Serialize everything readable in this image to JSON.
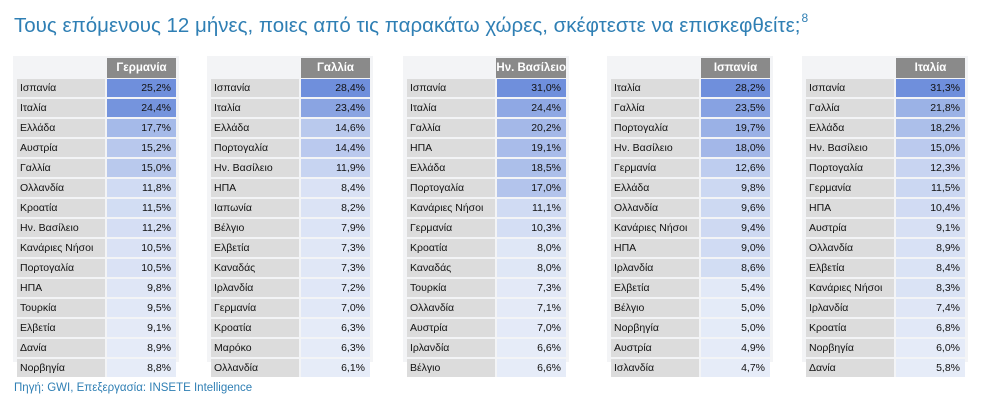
{
  "title": "Τους επόμενους 12 μήνες, ποιες από τις παρακάτω χώρες, σκέφτεστε να επισκεφθείτε;",
  "footnote_mark": "8",
  "source": "Πηγή: GWI, Επεξεργασία: INSETE Intelligence",
  "colors": {
    "title": "#2f7fb4",
    "header_bg": "#8a8a8a",
    "label_bg": "#dcdcdc",
    "bar_max": "#6f8fdc",
    "bar_min": "#e6ecf8"
  },
  "tables": [
    {
      "header": "Γερμανία",
      "rows": [
        {
          "country": "Ισπανία",
          "value": "25,2%"
        },
        {
          "country": "Ιταλία",
          "value": "24,4%"
        },
        {
          "country": "Ελλάδα",
          "value": "17,7%"
        },
        {
          "country": "Αυστρία",
          "value": "15,2%"
        },
        {
          "country": "Γαλλία",
          "value": "15,0%"
        },
        {
          "country": "Ολλανδία",
          "value": "11,8%"
        },
        {
          "country": "Κροατία",
          "value": "11,5%"
        },
        {
          "country": "Ην. Βασίλειο",
          "value": "11,2%"
        },
        {
          "country": "Κανάριες Νήσοι",
          "value": "10,5%"
        },
        {
          "country": "Πορτογαλία",
          "value": "10,5%"
        },
        {
          "country": "ΗΠΑ",
          "value": "9,8%"
        },
        {
          "country": "Τουρκία",
          "value": "9,5%"
        },
        {
          "country": "Ελβετία",
          "value": "9,1%"
        },
        {
          "country": "Δανία",
          "value": "8,9%"
        },
        {
          "country": "Νορβηγία",
          "value": "8,8%"
        }
      ]
    },
    {
      "header": "Γαλλία",
      "rows": [
        {
          "country": "Ισπανία",
          "value": "28,4%"
        },
        {
          "country": "Ιταλία",
          "value": "23,4%"
        },
        {
          "country": "Ελλάδα",
          "value": "14,6%"
        },
        {
          "country": "Πορτογαλία",
          "value": "14,4%"
        },
        {
          "country": "Ην. Βασίλειο",
          "value": "11,9%"
        },
        {
          "country": "ΗΠΑ",
          "value": "8,4%"
        },
        {
          "country": "Ιαπωνία",
          "value": "8,2%"
        },
        {
          "country": "Βέλγιο",
          "value": "7,9%"
        },
        {
          "country": "Ελβετία",
          "value": "7,3%"
        },
        {
          "country": "Καναδάς",
          "value": "7,3%"
        },
        {
          "country": "Ιρλανδία",
          "value": "7,2%"
        },
        {
          "country": "Γερμανία",
          "value": "7,0%"
        },
        {
          "country": "Κροατία",
          "value": "6,3%"
        },
        {
          "country": "Μαρόκο",
          "value": "6,3%"
        },
        {
          "country": "Ολλανδία",
          "value": "6,1%"
        }
      ]
    },
    {
      "header": "Ην. Βασίλειο",
      "rows": [
        {
          "country": "Ισπανία",
          "value": "31,0%"
        },
        {
          "country": "Ιταλία",
          "value": "24,4%"
        },
        {
          "country": "Γαλλία",
          "value": "20,2%"
        },
        {
          "country": "ΗΠΑ",
          "value": "19,1%"
        },
        {
          "country": "Ελλάδα",
          "value": "18,5%"
        },
        {
          "country": "Πορτογαλία",
          "value": "17,0%"
        },
        {
          "country": "Κανάριες Νήσοι",
          "value": "11,1%"
        },
        {
          "country": "Γερμανία",
          "value": "10,3%"
        },
        {
          "country": "Κροατία",
          "value": "8,0%"
        },
        {
          "country": "Καναδάς",
          "value": "8,0%"
        },
        {
          "country": "Τουρκία",
          "value": "7,3%"
        },
        {
          "country": "Ολλανδία",
          "value": "7,1%"
        },
        {
          "country": "Αυστρία",
          "value": "7,0%"
        },
        {
          "country": "Ιρλανδία",
          "value": "6,6%"
        },
        {
          "country": "Βέλγιο",
          "value": "6,6%"
        }
      ]
    },
    {
      "header": "Ισπανία",
      "rows": [
        {
          "country": "Ιταλία",
          "value": "28,2%"
        },
        {
          "country": "Γαλλία",
          "value": "23,5%"
        },
        {
          "country": "Πορτογαλία",
          "value": "19,7%"
        },
        {
          "country": "Ην. Βασίλειο",
          "value": "18,0%"
        },
        {
          "country": "Γερμανία",
          "value": "12,6%"
        },
        {
          "country": "Ελλάδα",
          "value": "9,8%"
        },
        {
          "country": "Ολλανδία",
          "value": "9,6%"
        },
        {
          "country": "Κανάριες Νήσοι",
          "value": "9,4%"
        },
        {
          "country": "ΗΠΑ",
          "value": "9,0%"
        },
        {
          "country": "Ιρλανδία",
          "value": "8,6%"
        },
        {
          "country": "Ελβετία",
          "value": "5,4%"
        },
        {
          "country": "Βέλγιο",
          "value": "5,0%"
        },
        {
          "country": "Νορβηγία",
          "value": "5,0%"
        },
        {
          "country": "Αυστρία",
          "value": "4,9%"
        },
        {
          "country": "Ισλανδία",
          "value": "4,7%"
        }
      ]
    },
    {
      "header": "Ιταλία",
      "rows": [
        {
          "country": "Ισπανία",
          "value": "31,3%"
        },
        {
          "country": "Γαλλία",
          "value": "21,8%"
        },
        {
          "country": "Ελλάδα",
          "value": "18,2%"
        },
        {
          "country": "Ην. Βασίλειο",
          "value": "15,0%"
        },
        {
          "country": "Πορτογαλία",
          "value": "12,3%"
        },
        {
          "country": "Γερμανία",
          "value": "11,5%"
        },
        {
          "country": "ΗΠΑ",
          "value": "10,4%"
        },
        {
          "country": "Αυστρία",
          "value": "9,1%"
        },
        {
          "country": "Ολλανδία",
          "value": "8,9%"
        },
        {
          "country": "Ελβετία",
          "value": "8,4%"
        },
        {
          "country": "Κανάριες Νήσοι",
          "value": "8,3%"
        },
        {
          "country": "Ιρλανδία",
          "value": "7,4%"
        },
        {
          "country": "Κροατία",
          "value": "6,8%"
        },
        {
          "country": "Νορβηγία",
          "value": "6,0%"
        },
        {
          "country": "Δανία",
          "value": "5,8%"
        }
      ]
    }
  ]
}
